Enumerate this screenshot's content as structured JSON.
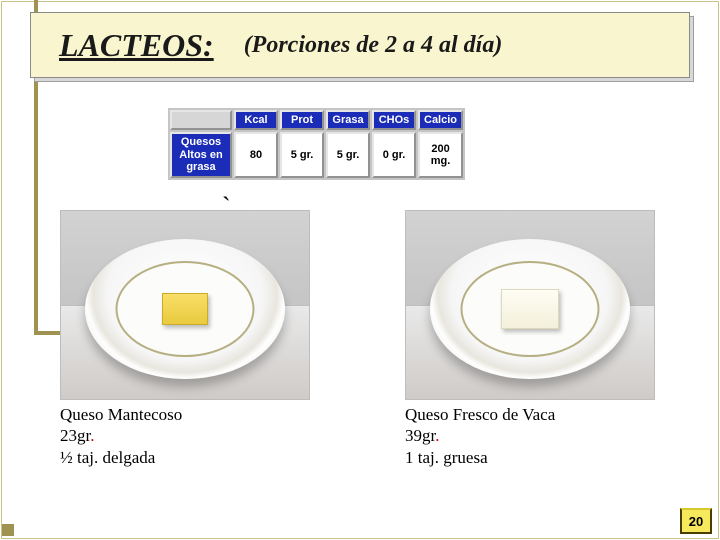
{
  "header": {
    "title": "LACTEOS:",
    "subtitle": "(Porciones de 2 a 4 al día)"
  },
  "nutrition_table": {
    "columns": [
      "Kcal",
      "Prot",
      "Grasa",
      "CHOs",
      "Calcio"
    ],
    "row_label": "Quesos\nAltos en\ngrasa",
    "values": [
      "80",
      "5 gr.",
      "5 gr.",
      "0 gr.",
      "200 mg."
    ],
    "header_bg": "#1a2cb8",
    "header_fg": "#ffffff",
    "cell_bg": "#ffffff",
    "corner_bg": "#d6d6d6"
  },
  "items": {
    "left": {
      "name": "Queso Mantecoso",
      "weight_num": "23",
      "weight_unit": "gr",
      "portion": "½ taj. delgada",
      "cheese_color": "#f3d452"
    },
    "right": {
      "name": "Queso Fresco de Vaca",
      "weight_num": " 39",
      "weight_unit": "gr",
      "portion": " 1  taj. gruesa",
      "cheese_color": "#f7f4e2"
    }
  },
  "page_number": "20",
  "colors": {
    "header_bg": "#f9f6cf",
    "accent": "#a09250",
    "pagebox_bg": "#f6e95b",
    "red_dot": "#d00000"
  }
}
